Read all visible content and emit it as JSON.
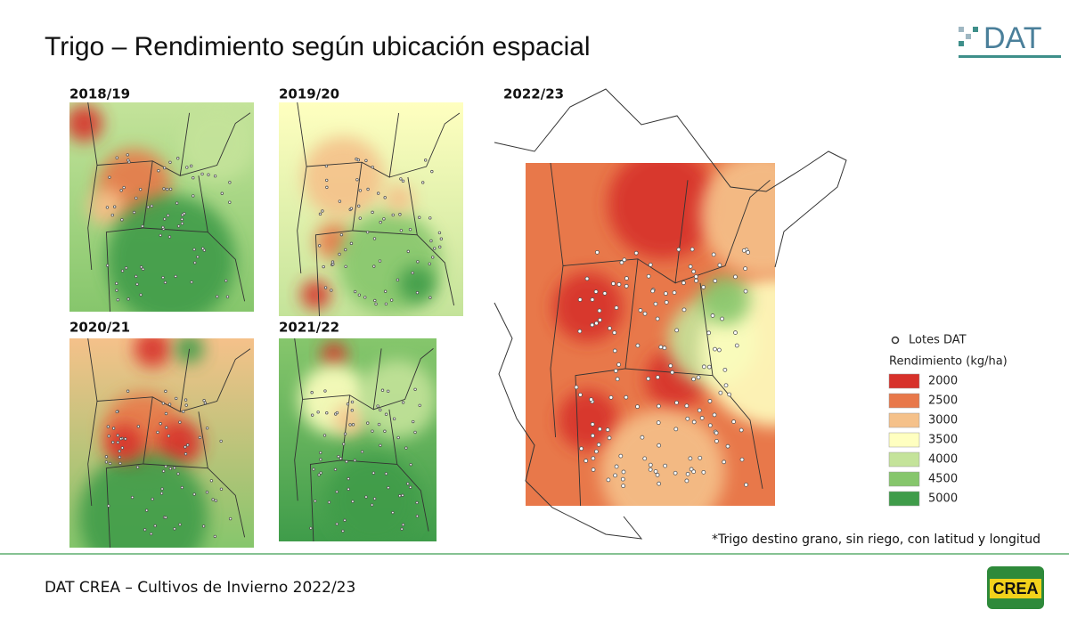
{
  "header": {
    "title": "Trigo – Rendimiento según ubicación espacial",
    "logo": "DAT"
  },
  "maps": [
    {
      "label": "2018/19"
    },
    {
      "label": "2019/20"
    },
    {
      "label": "2020/21"
    },
    {
      "label": "2021/22"
    },
    {
      "label": "2022/23"
    }
  ],
  "legend": {
    "points_label": "Lotes DAT",
    "title": "Rendimiento (kg/ha)",
    "classes": [
      {
        "value": 2000,
        "color": "#d7312a"
      },
      {
        "value": 2500,
        "color": "#e8784a"
      },
      {
        "value": 3000,
        "color": "#f5c18a"
      },
      {
        "value": 3500,
        "color": "#ffffc0"
      },
      {
        "value": 4000,
        "color": "#c4e39a"
      },
      {
        "value": 4500,
        "color": "#86c66c"
      },
      {
        "value": 5000,
        "color": "#3f9c4a"
      }
    ]
  },
  "footnote": "*Trigo destino grano, sin riego, con latitud y longitud",
  "footer": {
    "text": "DAT CREA – Cultivos de Invierno 2022/23",
    "logo": "CREA"
  }
}
